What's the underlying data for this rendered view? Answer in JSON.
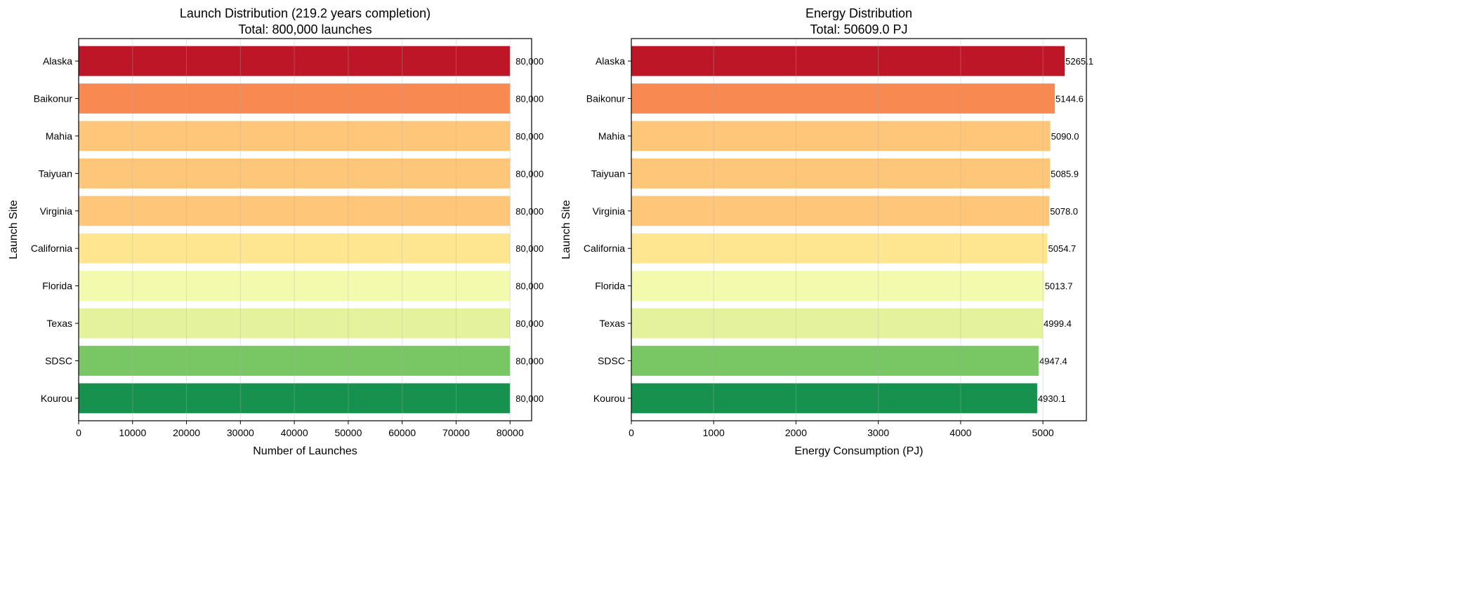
{
  "chart_data": [
    {
      "type": "bar",
      "orientation": "horizontal",
      "title": "Launch Distribution (219.2 years completion)\nTotal: 800,000 launches",
      "title_lines": [
        "Launch Distribution (219.2 years completion)",
        "Total: 800,000 launches"
      ],
      "xlabel": "Number of Launches",
      "ylabel": "Launch Site",
      "categories": [
        "Alaska",
        "Baikonur",
        "Mahia",
        "Taiyuan",
        "Virginia",
        "California",
        "Florida",
        "Texas",
        "SDSC",
        "Kourou"
      ],
      "values": [
        80000,
        80000,
        80000,
        80000,
        80000,
        80000,
        80000,
        80000,
        80000,
        80000
      ],
      "data_labels": [
        "80,000",
        "80,000",
        "80,000",
        "80,000",
        "80,000",
        "80,000",
        "80,000",
        "80,000",
        "80,000",
        "80,000"
      ],
      "colors": [
        "#bd1727",
        "#f88950",
        "#fdc678",
        "#fdc678",
        "#fdc678",
        "#fee590",
        "#f3faae",
        "#e4f29c",
        "#79c665",
        "#17924e"
      ],
      "xlim": [
        0,
        84000
      ],
      "xticks": [
        0,
        10000,
        20000,
        30000,
        40000,
        50000,
        60000,
        70000,
        80000
      ],
      "grid": "x"
    },
    {
      "type": "bar",
      "orientation": "horizontal",
      "title": "Energy Distribution\nTotal: 50609.0 PJ",
      "title_lines": [
        "Energy Distribution",
        "Total: 50609.0 PJ"
      ],
      "xlabel": "Energy Consumption (PJ)",
      "ylabel": "Launch Site",
      "categories": [
        "Alaska",
        "Baikonur",
        "Mahia",
        "Taiyuan",
        "Virginia",
        "California",
        "Florida",
        "Texas",
        "SDSC",
        "Kourou"
      ],
      "values": [
        5265.1,
        5144.6,
        5090.0,
        5085.9,
        5078.0,
        5054.7,
        5013.7,
        4999.4,
        4947.4,
        4930.1
      ],
      "data_labels": [
        "5265.1",
        "5144.6",
        "5090.0",
        "5085.9",
        "5078.0",
        "5054.7",
        "5013.7",
        "4999.4",
        "4947.4",
        "4930.1"
      ],
      "colors": [
        "#bd1727",
        "#f88950",
        "#fdc678",
        "#fdc678",
        "#fdc678",
        "#fee590",
        "#f3faae",
        "#e4f29c",
        "#79c665",
        "#17924e"
      ],
      "xlim": [
        0,
        5528
      ],
      "xticks": [
        0,
        1000,
        2000,
        3000,
        4000,
        5000
      ],
      "grid": "x"
    }
  ]
}
